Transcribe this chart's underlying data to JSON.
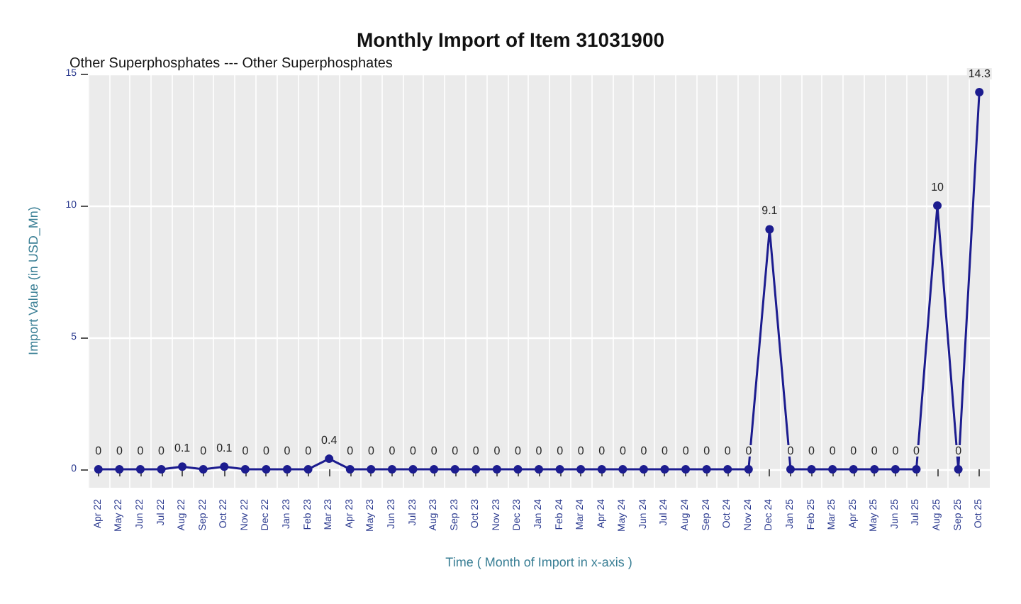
{
  "chart_data": {
    "type": "line",
    "title": "Monthly Import of Item 31031900",
    "subtitle": "Other Superphosphates --- Other Superphosphates",
    "xlabel": "Time ( Month of Import in x-axis )",
    "ylabel": "Import Value (in USD_Mn)",
    "categories": [
      "Apr 22",
      "May 22",
      "Jun 22",
      "Jul 22",
      "Aug 22",
      "Sep 22",
      "Oct 22",
      "Nov 22",
      "Dec 22",
      "Jan 23",
      "Feb 23",
      "Mar 23",
      "Apr 23",
      "May 23",
      "Jun 23",
      "Jul 23",
      "Aug 23",
      "Sep 23",
      "Oct 23",
      "Nov 23",
      "Dec 23",
      "Jan 24",
      "Feb 24",
      "Mar 24",
      "Apr 24",
      "May 24",
      "Jun 24",
      "Jul 24",
      "Aug 24",
      "Sep 24",
      "Oct 24",
      "Nov 24",
      "Dec 24",
      "Jan 25",
      "Feb 25",
      "Mar 25",
      "Apr 25",
      "May 25",
      "Jun 25",
      "Jul 25",
      "Aug 25",
      "Sep 25",
      "Oct 25"
    ],
    "series": [
      {
        "color": "#1c1c8f",
        "values": [
          0,
          0,
          0,
          0,
          0.1,
          0,
          0.1,
          0,
          0,
          0,
          0,
          0.4,
          0,
          0,
          0,
          0,
          0,
          0,
          0,
          0,
          0,
          0,
          0,
          0,
          0,
          0,
          0,
          0,
          0,
          0,
          0,
          0,
          9.1,
          0,
          0,
          0,
          0,
          0,
          0,
          0,
          10,
          0,
          14.3
        ]
      }
    ],
    "ylim": [
      -0.7,
      15
    ],
    "yticks": [
      0,
      5,
      10,
      15
    ],
    "grid": true,
    "data_labels": true,
    "marker": "circle",
    "line_style": "solid"
  }
}
